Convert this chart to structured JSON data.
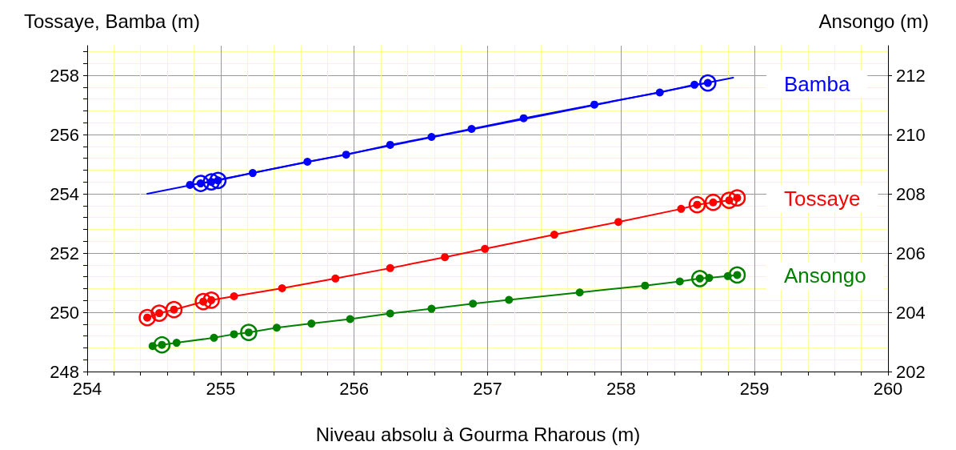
{
  "chart_data": {
    "type": "line",
    "title": null,
    "xlabel": "Niveau absolu à Gourma Rharous (m)",
    "ylabel": "Tossaye, Bamba (m)",
    "y2label": "Ansongo (m)",
    "xlim": [
      254,
      260
    ],
    "xticks": [
      254,
      {
        "value": 254.2,
        "label": null
      },
      {
        "value": 254.4,
        "label": null
      },
      {
        "value": 254.6,
        "label": null
      },
      {
        "value": 254.8,
        "label": null
      },
      255,
      {
        "value": 255.2,
        "label": null
      },
      {
        "value": 255.4,
        "label": null
      },
      {
        "value": 255.6,
        "label": null
      },
      {
        "value": 255.8,
        "label": null
      },
      256,
      {
        "value": 256.2,
        "label": null
      },
      {
        "value": 256.4,
        "label": null
      },
      {
        "value": 256.6,
        "label": null
      },
      {
        "value": 256.8,
        "label": null
      },
      257,
      {
        "value": 257.2,
        "label": null
      },
      {
        "value": 257.4,
        "label": null
      },
      {
        "value": 257.6,
        "label": null
      },
      {
        "value": 257.8,
        "label": null
      },
      258,
      {
        "value": 258.2,
        "label": null
      },
      {
        "value": 258.4,
        "label": null
      },
      {
        "value": 258.6,
        "label": null
      },
      {
        "value": 258.8,
        "label": null
      },
      259,
      {
        "value": 259.2,
        "label": null
      },
      {
        "value": 259.4,
        "label": null
      },
      {
        "value": 259.6,
        "label": null
      },
      {
        "value": 259.8,
        "label": null
      },
      260
    ],
    "ylim": [
      248,
      259
    ],
    "yticks": [
      248,
      {
        "value": 248.4,
        "label": null
      },
      {
        "value": 248.8,
        "label": null
      },
      {
        "value": 249.2,
        "label": null
      },
      {
        "value": 249.6,
        "label": null
      },
      250,
      {
        "value": 250.4,
        "label": null
      },
      {
        "value": 250.8,
        "label": null
      },
      {
        "value": 251.2,
        "label": null
      },
      {
        "value": 251.6,
        "label": null
      },
      252,
      {
        "value": 252.4,
        "label": null
      },
      {
        "value": 252.8,
        "label": null
      },
      {
        "value": 253.2,
        "label": null
      },
      {
        "value": 253.6,
        "label": null
      },
      254,
      {
        "value": 254.4,
        "label": null
      },
      {
        "value": 254.8,
        "label": null
      },
      {
        "value": 255.2,
        "label": null
      },
      {
        "value": 255.6,
        "label": null
      },
      256,
      {
        "value": 256.4,
        "label": null
      },
      {
        "value": 256.8,
        "label": null
      },
      {
        "value": 257.2,
        "label": null
      },
      {
        "value": 257.6,
        "label": null
      },
      258,
      {
        "value": 258.4,
        "label": null
      },
      {
        "value": 258.8,
        "label": null
      }
    ],
    "y2lim": [
      202,
      213
    ],
    "y2ticks": [
      202,
      204,
      206,
      208,
      210,
      212
    ],
    "grid": true,
    "legend": false,
    "series": [
      {
        "marker": "none",
        "color": "#0000ff",
        "x": [
          254.45,
          258.84
        ],
        "values": [
          254.0,
          257.92
        ]
      },
      {
        "marker": "circle",
        "name": "Bamba",
        "color": "#0000ff",
        "x": [
          254.77,
          254.85,
          254.93,
          254.98,
          255.24,
          255.65,
          255.94,
          256.27,
          256.58,
          256.88,
          257.27,
          257.8,
          258.29,
          258.55,
          258.65
        ],
        "values": [
          254.3,
          254.35,
          254.4,
          254.45,
          254.7,
          255.08,
          255.32,
          255.65,
          255.92,
          256.19,
          256.55,
          257.01,
          257.42,
          257.68,
          257.74
        ]
      },
      {
        "type": "scatter",
        "marker": "circle",
        "color": "#0000ff",
        "x": [
          254.85,
          254.93,
          254.98,
          258.65
        ],
        "values": [
          254.35,
          254.4,
          254.45,
          257.74
        ]
      },
      {
        "marker": "circle",
        "name": "Tossaye",
        "color": "#ff0000",
        "x": [
          254.45,
          254.54,
          254.65,
          254.87,
          254.93,
          255.1,
          255.46,
          255.86,
          256.27,
          256.68,
          256.98,
          257.5,
          257.98,
          258.45,
          258.57,
          258.69,
          258.81,
          258.87
        ],
        "values": [
          249.82,
          249.97,
          250.09,
          250.36,
          250.41,
          250.54,
          250.81,
          251.14,
          251.49,
          251.86,
          252.14,
          252.62,
          253.05,
          253.49,
          253.63,
          253.71,
          253.78,
          253.86
        ]
      },
      {
        "type": "scatter",
        "marker": "circle",
        "color": "#ff0000",
        "x": [
          254.45,
          254.54,
          254.65,
          254.87,
          254.93,
          258.57,
          258.69,
          258.81,
          258.87
        ],
        "values": [
          249.82,
          249.97,
          250.09,
          250.36,
          250.41,
          253.63,
          253.71,
          253.78,
          253.86
        ]
      },
      {
        "marker": "circle",
        "name": "Ansongo",
        "axis": "y2",
        "color": "#008000",
        "x": [
          254.49,
          254.56,
          254.67,
          254.95,
          255.1,
          255.21,
          255.42,
          255.68,
          255.97,
          256.27,
          256.58,
          256.89,
          257.16,
          257.69,
          258.18,
          258.44,
          258.59,
          258.66,
          258.8,
          258.87
        ],
        "values": [
          202.86,
          202.9,
          202.97,
          203.14,
          203.26,
          203.32,
          203.48,
          203.62,
          203.77,
          203.96,
          204.12,
          204.29,
          204.42,
          204.67,
          204.9,
          205.04,
          205.14,
          205.16,
          205.22,
          205.26
        ]
      },
      {
        "type": "scatter",
        "marker": "circle",
        "axis": "y2",
        "color": "#008000",
        "x": [
          254.56,
          255.21,
          258.59,
          258.87
        ],
        "values": [
          202.9,
          203.32,
          205.14,
          205.26
        ]
      }
    ]
  }
}
